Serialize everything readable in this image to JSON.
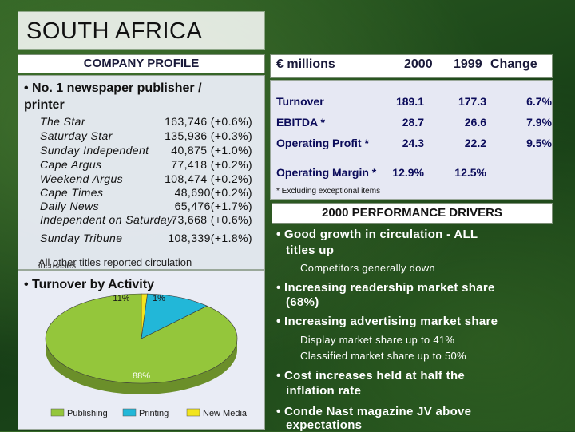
{
  "title": "SOUTH AFRICA",
  "company_profile": {
    "header": "COMPANY PROFILE",
    "bullet": "• No. 1 newspaper publisher / printer",
    "papers": [
      {
        "name": "The Star",
        "value": "163,746 (+0.6%)"
      },
      {
        "name": "Saturday Star",
        "value": "135,936 (+0.3%)"
      },
      {
        "name": "Sunday Independent",
        "value": "40,875 (+1.0%)"
      },
      {
        "name": "Cape Argus",
        "value": "77,418 (+0.2%)"
      },
      {
        "name": "Weekend Argus",
        "value": "108,474 (+0.2%)"
      },
      {
        "name": "Cape Times",
        "value": "48,690(+0.2%)"
      },
      {
        "name": "Daily News",
        "value": "65,476(+1.7%)"
      },
      {
        "name": "Independent on Saturday",
        "value": "73,668 (+0.6%)"
      },
      {
        "name": "Sunday Tribune",
        "value": "108,339(+1.8%)"
      }
    ],
    "other_titles": "All other titles reported circulation",
    "other_titles_overlap": "increases",
    "turnover_bullet": "• Turnover by Activity"
  },
  "chart_data": {
    "type": "pie",
    "categories": [
      "Publishing",
      "Printing",
      "New Media"
    ],
    "values": [
      88,
      11,
      1
    ],
    "labels": [
      "88%",
      "11%",
      "1%"
    ],
    "colors": [
      "#94c63b",
      "#22b7d8",
      "#f2e41d"
    ],
    "legend_position": "bottom"
  },
  "financials": {
    "headers": [
      "€ millions",
      "2000",
      "1999",
      "Change"
    ],
    "rows": [
      {
        "label": "Turnover",
        "v2000": "189.1",
        "v1999": "177.3",
        "change": "6.7%"
      },
      {
        "label": "EBITDA *",
        "v2000": "28.7",
        "v1999": "26.6",
        "change": "7.9%"
      },
      {
        "label": "Operating Profit *",
        "v2000": "24.3",
        "v1999": "22.2",
        "change": "9.5%"
      },
      {
        "label": "Operating Margin *",
        "v2000": "12.9%",
        "v1999": "12.5%",
        "change": ""
      }
    ],
    "footnote": "* Excluding exceptional items"
  },
  "drivers": {
    "header": "2000 PERFORMANCE DRIVERS",
    "items": [
      {
        "text": "• Good growth in circulation - ALL",
        "text2": "titles up",
        "sub": [
          "Competitors generally down"
        ]
      },
      {
        "text": "• Increasing readership market share",
        "text2": "(68%)",
        "sub": []
      },
      {
        "text": "• Increasing advertising market share",
        "text2": "",
        "sub": [
          "Display market share up to 41%",
          "Classified market share up to 50%"
        ]
      },
      {
        "text": "• Cost increases held at half the",
        "text2": "inflation rate",
        "sub": []
      },
      {
        "text": "• Conde Nast magazine JV above",
        "text2": "expectations",
        "sub": []
      }
    ]
  }
}
